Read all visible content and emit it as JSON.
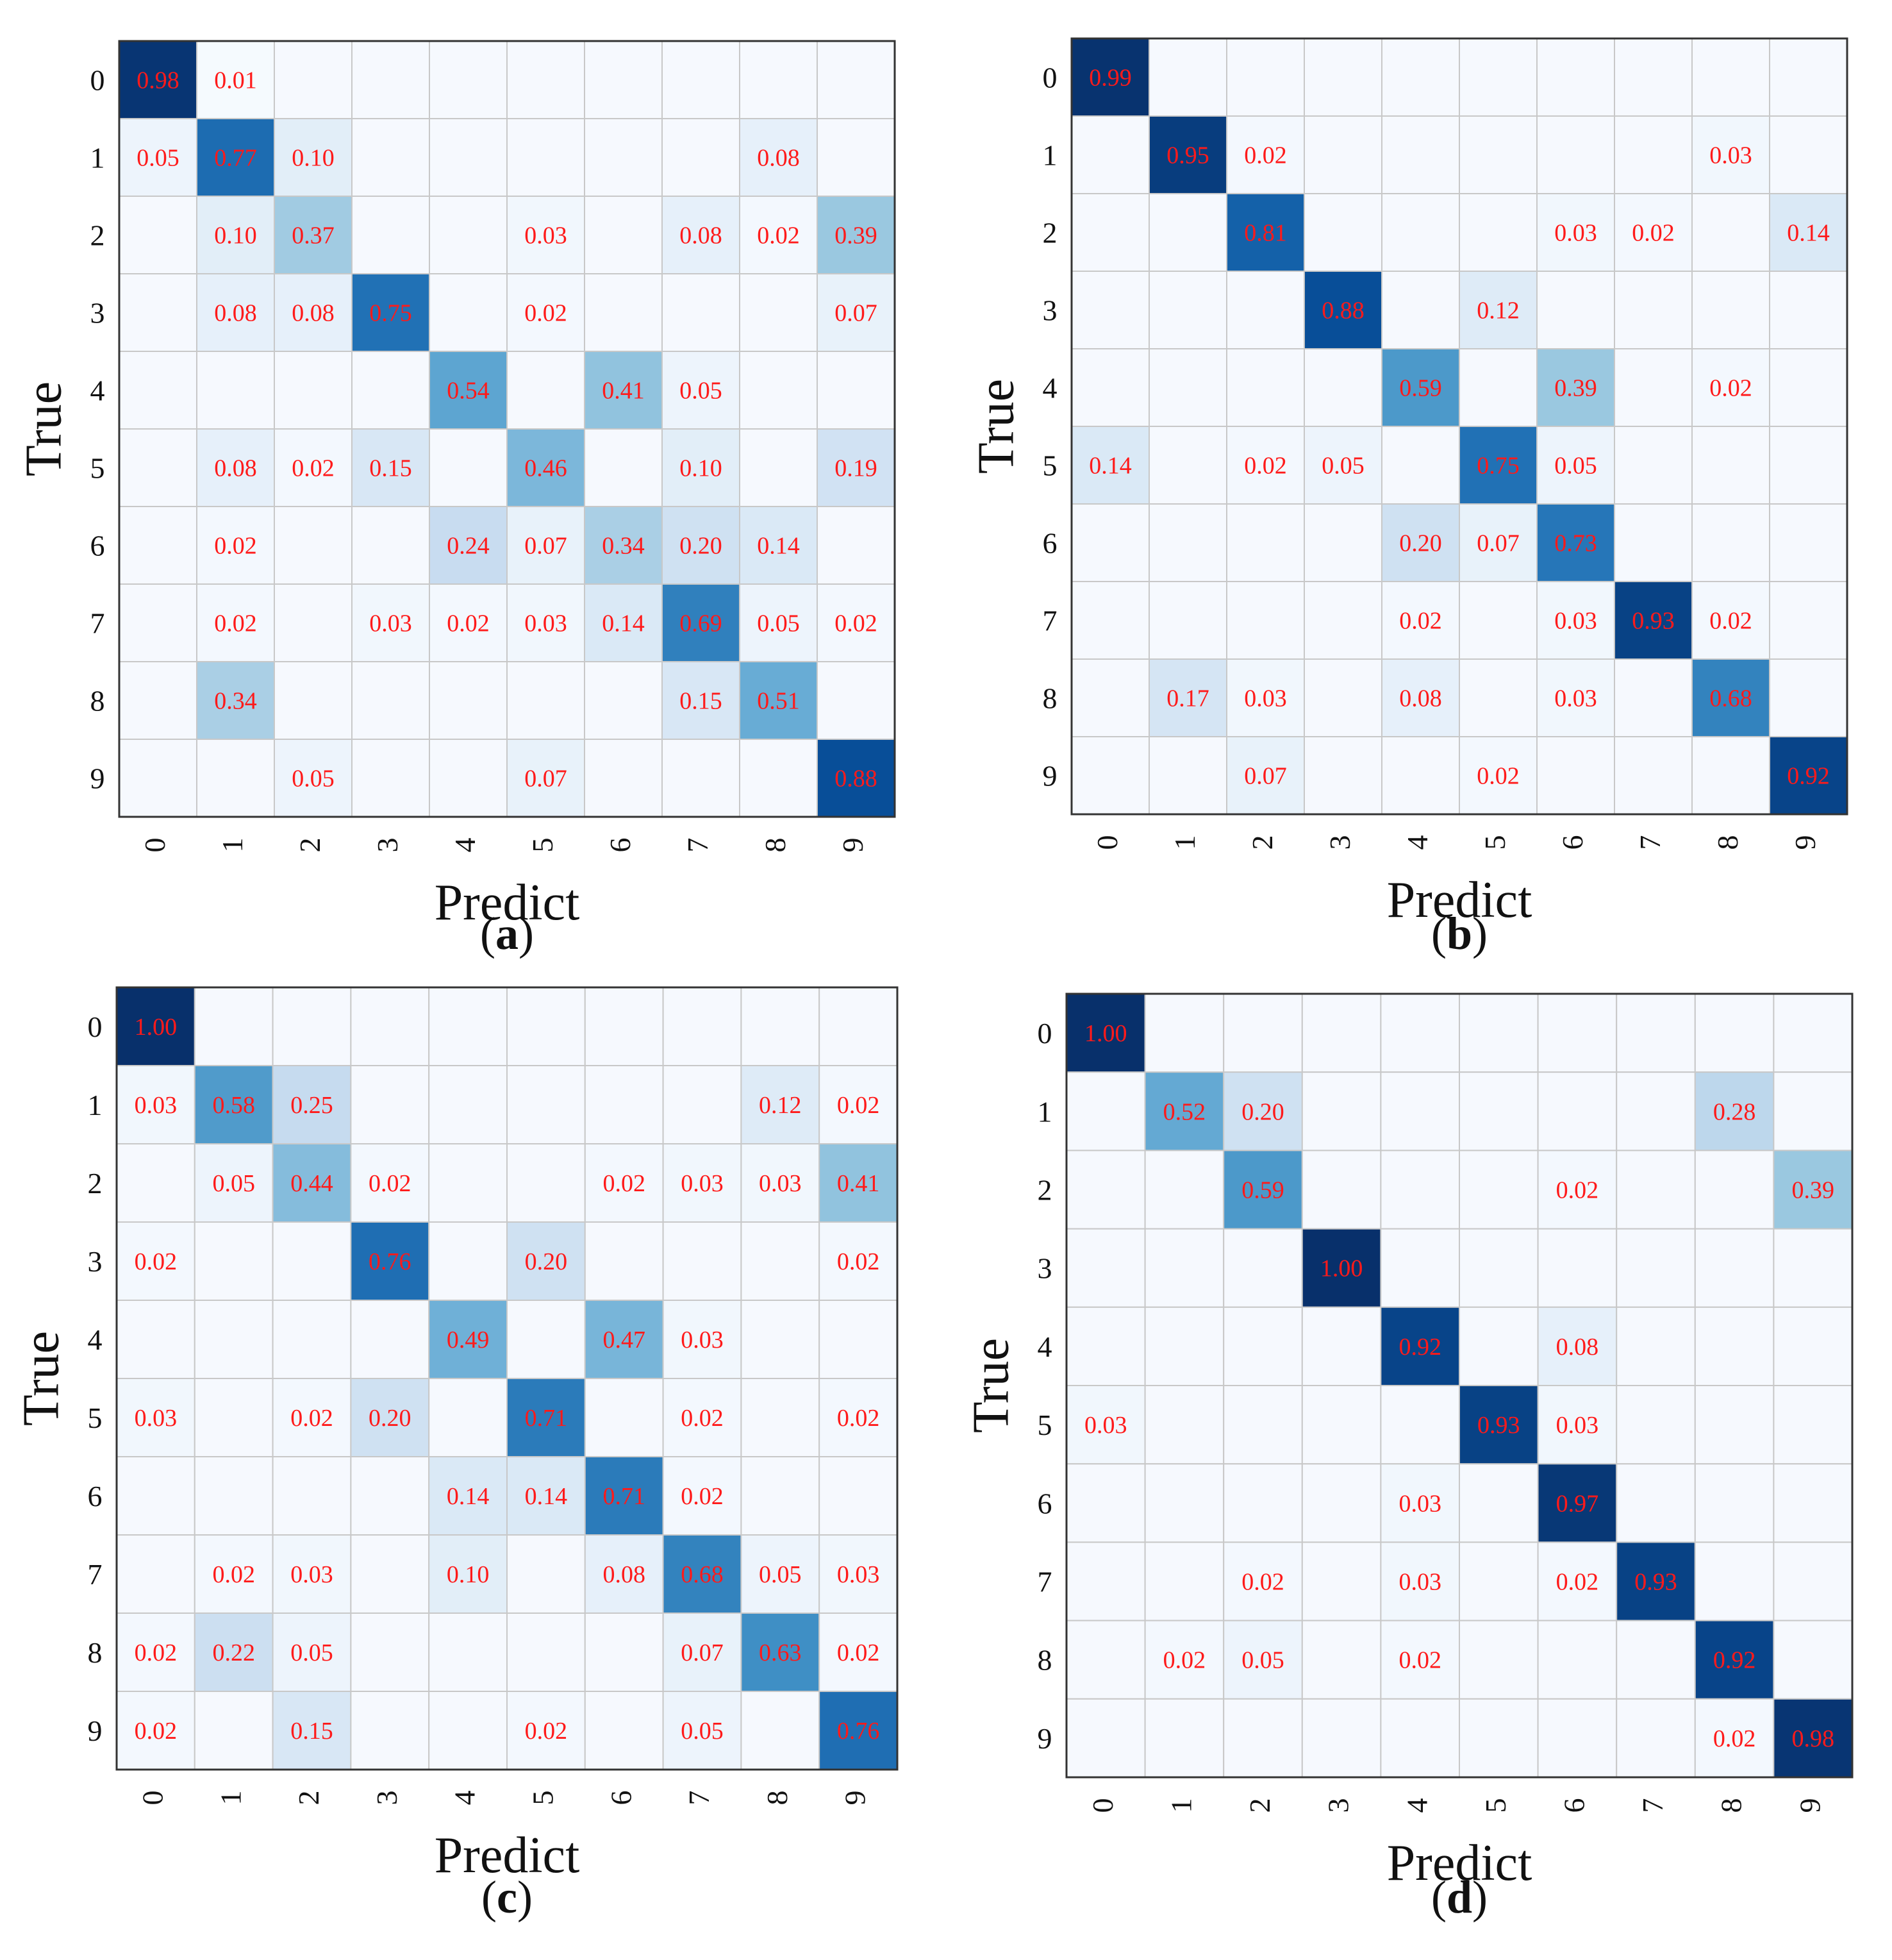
{
  "chart_data": [
    {
      "type": "heatmap",
      "panel_label": "a",
      "xlabel": "Predict",
      "ylabel": "True",
      "x_categories": [
        "0",
        "1",
        "2",
        "3",
        "4",
        "5",
        "6",
        "7",
        "8",
        "9"
      ],
      "y_categories": [
        "0",
        "1",
        "2",
        "3",
        "4",
        "5",
        "6",
        "7",
        "8",
        "9"
      ],
      "colormap": "Blues",
      "value_label_color": "#ff1a1a",
      "values": [
        [
          0.98,
          0.01,
          null,
          null,
          null,
          null,
          null,
          null,
          null,
          null
        ],
        [
          0.05,
          0.77,
          0.1,
          null,
          null,
          null,
          null,
          null,
          0.08,
          null
        ],
        [
          null,
          0.1,
          0.37,
          null,
          null,
          0.03,
          null,
          0.08,
          0.02,
          0.39
        ],
        [
          null,
          0.08,
          0.08,
          0.75,
          null,
          0.02,
          null,
          null,
          null,
          0.07
        ],
        [
          null,
          null,
          null,
          null,
          0.54,
          null,
          0.41,
          0.05,
          null,
          null
        ],
        [
          null,
          0.08,
          0.02,
          0.15,
          null,
          0.46,
          null,
          0.1,
          null,
          0.19
        ],
        [
          null,
          0.02,
          null,
          null,
          0.24,
          0.07,
          0.34,
          0.2,
          0.14,
          null
        ],
        [
          null,
          0.02,
          null,
          0.03,
          0.02,
          0.03,
          0.14,
          0.69,
          0.05,
          0.02
        ],
        [
          null,
          0.34,
          null,
          null,
          null,
          null,
          null,
          0.15,
          0.51,
          null
        ],
        [
          null,
          null,
          0.05,
          null,
          null,
          0.07,
          null,
          null,
          null,
          0.88
        ]
      ]
    },
    {
      "type": "heatmap",
      "panel_label": "b",
      "xlabel": "Predict",
      "ylabel": "True",
      "x_categories": [
        "0",
        "1",
        "2",
        "3",
        "4",
        "5",
        "6",
        "7",
        "8",
        "9"
      ],
      "y_categories": [
        "0",
        "1",
        "2",
        "3",
        "4",
        "5",
        "6",
        "7",
        "8",
        "9"
      ],
      "colormap": "Blues",
      "value_label_color": "#ff1a1a",
      "values": [
        [
          0.99,
          null,
          null,
          null,
          null,
          null,
          null,
          null,
          null,
          null
        ],
        [
          null,
          0.95,
          0.02,
          null,
          null,
          null,
          null,
          null,
          0.03,
          null
        ],
        [
          null,
          null,
          0.81,
          null,
          null,
          null,
          0.03,
          0.02,
          null,
          0.14
        ],
        [
          null,
          null,
          null,
          0.88,
          null,
          0.12,
          null,
          null,
          null,
          null
        ],
        [
          null,
          null,
          null,
          null,
          0.59,
          null,
          0.39,
          null,
          0.02,
          null
        ],
        [
          0.14,
          null,
          0.02,
          0.05,
          null,
          0.75,
          0.05,
          null,
          null,
          null
        ],
        [
          null,
          null,
          null,
          null,
          0.2,
          0.07,
          0.73,
          null,
          null,
          null
        ],
        [
          null,
          null,
          null,
          null,
          0.02,
          null,
          0.03,
          0.93,
          0.02,
          null
        ],
        [
          null,
          0.17,
          0.03,
          null,
          0.08,
          null,
          0.03,
          null,
          0.68,
          null
        ],
        [
          null,
          null,
          0.07,
          null,
          null,
          0.02,
          null,
          null,
          null,
          0.92
        ]
      ]
    },
    {
      "type": "heatmap",
      "panel_label": "c",
      "xlabel": "Predict",
      "ylabel": "True",
      "x_categories": [
        "0",
        "1",
        "2",
        "3",
        "4",
        "5",
        "6",
        "7",
        "8",
        "9"
      ],
      "y_categories": [
        "0",
        "1",
        "2",
        "3",
        "4",
        "5",
        "6",
        "7",
        "8",
        "9"
      ],
      "colormap": "Blues",
      "value_label_color": "#ff1a1a",
      "values": [
        [
          1.0,
          null,
          null,
          null,
          null,
          null,
          null,
          null,
          null,
          null
        ],
        [
          0.03,
          0.58,
          0.25,
          null,
          null,
          null,
          null,
          null,
          0.12,
          0.02
        ],
        [
          null,
          0.05,
          0.44,
          0.02,
          null,
          null,
          0.02,
          0.03,
          0.03,
          0.41
        ],
        [
          0.02,
          null,
          null,
          0.76,
          null,
          0.2,
          null,
          null,
          null,
          0.02
        ],
        [
          null,
          null,
          null,
          null,
          0.49,
          null,
          0.47,
          0.03,
          null,
          null
        ],
        [
          0.03,
          null,
          0.02,
          0.2,
          null,
          0.71,
          null,
          0.02,
          null,
          0.02
        ],
        [
          null,
          null,
          null,
          null,
          0.14,
          0.14,
          0.71,
          0.02,
          null,
          null
        ],
        [
          null,
          0.02,
          0.03,
          null,
          0.1,
          null,
          0.08,
          0.68,
          0.05,
          0.03
        ],
        [
          0.02,
          0.22,
          0.05,
          null,
          null,
          null,
          null,
          0.07,
          0.63,
          0.02
        ],
        [
          0.02,
          null,
          0.15,
          null,
          null,
          0.02,
          null,
          0.05,
          null,
          0.76
        ]
      ]
    },
    {
      "type": "heatmap",
      "panel_label": "d",
      "xlabel": "Predict",
      "ylabel": "True",
      "x_categories": [
        "0",
        "1",
        "2",
        "3",
        "4",
        "5",
        "6",
        "7",
        "8",
        "9"
      ],
      "y_categories": [
        "0",
        "1",
        "2",
        "3",
        "4",
        "5",
        "6",
        "7",
        "8",
        "9"
      ],
      "colormap": "Blues",
      "value_label_color": "#ff1a1a",
      "values": [
        [
          1.0,
          null,
          null,
          null,
          null,
          null,
          null,
          null,
          null,
          null
        ],
        [
          null,
          0.52,
          0.2,
          null,
          null,
          null,
          null,
          null,
          0.28,
          null
        ],
        [
          null,
          null,
          0.59,
          null,
          null,
          null,
          0.02,
          null,
          null,
          0.39
        ],
        [
          null,
          null,
          null,
          1.0,
          null,
          null,
          null,
          null,
          null,
          null
        ],
        [
          null,
          null,
          null,
          null,
          0.92,
          null,
          0.08,
          null,
          null,
          null
        ],
        [
          0.03,
          null,
          null,
          null,
          null,
          0.93,
          0.03,
          null,
          null,
          null
        ],
        [
          null,
          null,
          null,
          null,
          0.03,
          null,
          0.97,
          null,
          null,
          null
        ],
        [
          null,
          null,
          0.02,
          null,
          0.03,
          null,
          0.02,
          0.93,
          null,
          null
        ],
        [
          null,
          0.02,
          0.05,
          null,
          0.02,
          null,
          null,
          null,
          0.92,
          null
        ],
        [
          null,
          null,
          null,
          null,
          null,
          null,
          null,
          null,
          0.02,
          0.98
        ]
      ]
    }
  ]
}
